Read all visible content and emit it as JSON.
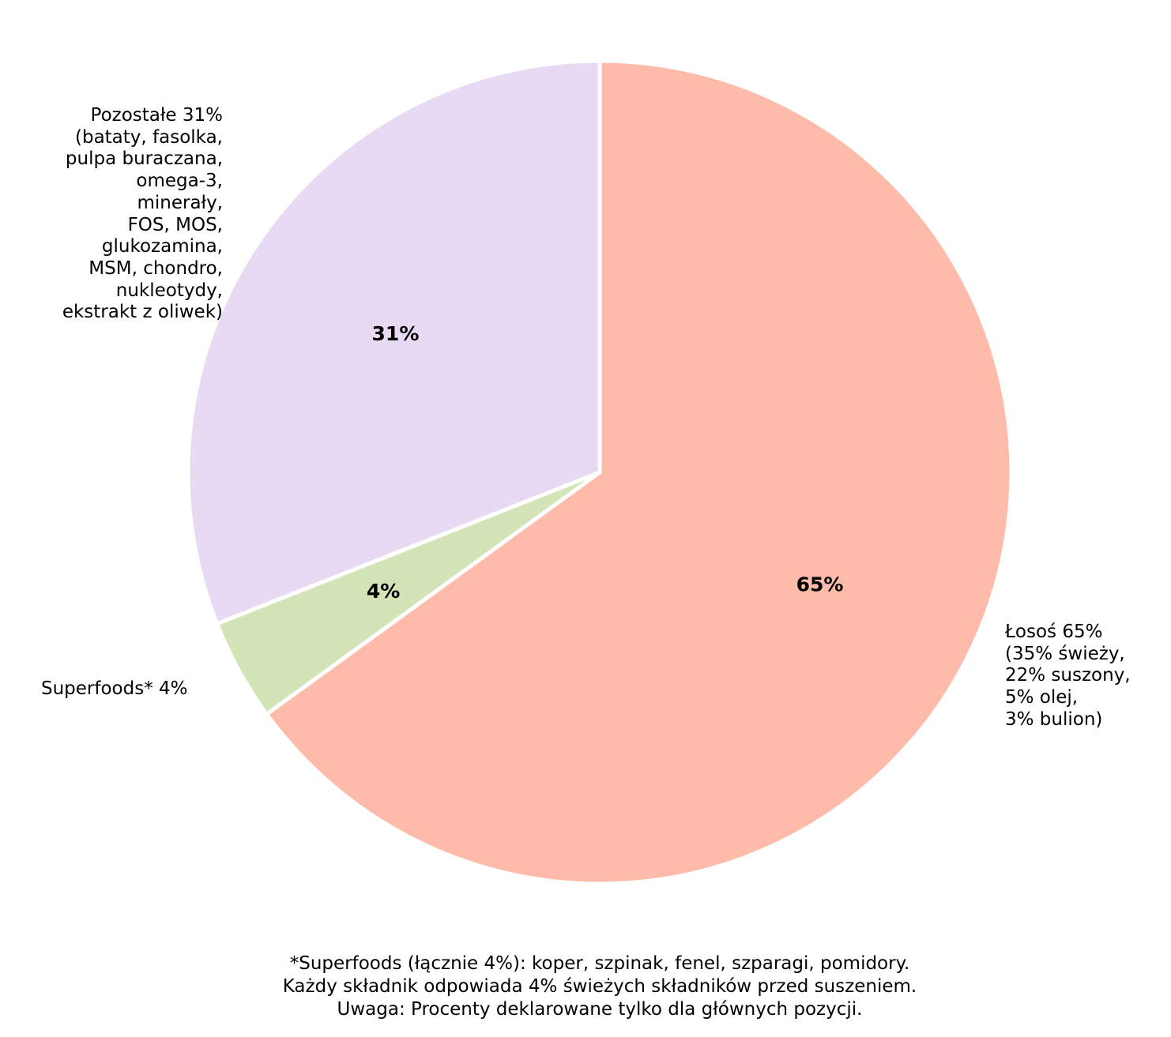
{
  "chart_data": {
    "type": "pie",
    "slices": [
      {
        "name": "Łosoś",
        "value": 65,
        "pct_label": "65%",
        "color": "#ffbbaa",
        "label_lines": [
          "Łosoś 65%",
          "(35% świeży,",
          "22% suszony,",
          "5% olej,",
          "3% bulion)"
        ]
      },
      {
        "name": "Superfoods*",
        "value": 4,
        "pct_label": "4%",
        "color": "#d3e4b6",
        "label_lines": [
          "Superfoods* 4%"
        ]
      },
      {
        "name": "Pozostałe",
        "value": 31,
        "pct_label": "31%",
        "color": "#e9daf4",
        "label_lines": [
          "Pozostałe 31%",
          "(bataty, fasolka,",
          "pulpa buraczana,",
          "omega-3,",
          "minerały,",
          "FOS, MOS,",
          "glukozamina,",
          "MSM, chondro,",
          "nukleotydy,",
          "ekstrakt z oliwek)"
        ]
      }
    ],
    "start_angle": "top (12 o'clock)",
    "direction": "clockwise",
    "edge_color": "#ffffff"
  },
  "footnote": {
    "lines": [
      "*Superfoods (łącznie 4%): koper, szpinak, fenel, szparagi, pomidory.",
      "Każdy składnik odpowiada 4% świeżych składników przed suszeniem.",
      "Uwaga: Procenty deklarowane tylko dla głównych pozycji."
    ]
  }
}
